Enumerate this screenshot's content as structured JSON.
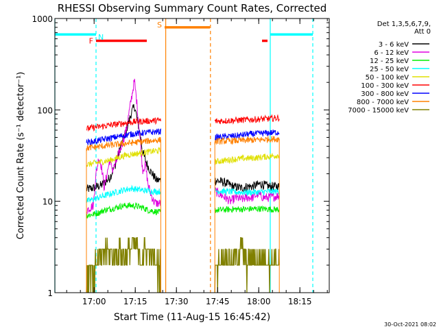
{
  "chart_data": {
    "type": "line",
    "title": "RHESSI Observing Summary Count Rates, Corrected",
    "xlabel": "Start Time (11-Aug-15 16:45:42)",
    "ylabel": "Corrected Count Rate (s⁻¹ detector⁻¹)",
    "x_unit": "minutes after 16:45:42",
    "xlim": [
      0,
      100
    ],
    "ylim": [
      1,
      1000
    ],
    "yscale": "log",
    "x_ticks": [
      {
        "x": 14.3,
        "label": "17:00"
      },
      {
        "x": 29.3,
        "label": "17:15"
      },
      {
        "x": 44.3,
        "label": "17:30"
      },
      {
        "x": 59.3,
        "label": "17:45"
      },
      {
        "x": 74.3,
        "label": "18:00"
      },
      {
        "x": 89.3,
        "label": "18:15"
      }
    ],
    "y_ticks": [
      {
        "y": 1,
        "label": "1"
      },
      {
        "y": 10,
        "label": "10"
      },
      {
        "y": 100,
        "label": "100"
      },
      {
        "y": 1000,
        "label": "1000"
      }
    ],
    "legend_header": [
      "Det 1,3,5,6,7,9,",
      "Att 0"
    ],
    "legend_placement": "right",
    "footer": "30-Oct-2021 08:02",
    "segments": [
      [
        11.5,
        38.6
      ],
      [
        58.3,
        81.8
      ]
    ],
    "series": [
      {
        "name": "3 - 6 keV",
        "color": "#000000",
        "points": [
          [
            11.5,
            13.5
          ],
          [
            14,
            14
          ],
          [
            17,
            15
          ],
          [
            20,
            18
          ],
          [
            22,
            25
          ],
          [
            24,
            40
          ],
          [
            26,
            60
          ],
          [
            27,
            75
          ],
          [
            28,
            95
          ],
          [
            29,
            110
          ],
          [
            30,
            80
          ],
          [
            31,
            55
          ],
          [
            32,
            35
          ],
          [
            33,
            28
          ],
          [
            34,
            24
          ],
          [
            35,
            21
          ],
          [
            36,
            19
          ],
          [
            37,
            17
          ],
          [
            38.6,
            17
          ],
          [
            58.3,
            17
          ],
          [
            62,
            16
          ],
          [
            65,
            14.5
          ],
          [
            68,
            14
          ],
          [
            70,
            14.5
          ],
          [
            72,
            14.5
          ],
          [
            75,
            15.5
          ],
          [
            78,
            14.5
          ],
          [
            81.8,
            14.5
          ]
        ]
      },
      {
        "name": "6 - 12 keV",
        "color": "#E000E0",
        "points": [
          [
            11.5,
            8
          ],
          [
            14,
            9
          ],
          [
            15,
            20
          ],
          [
            16,
            30
          ],
          [
            17,
            24
          ],
          [
            18,
            14
          ],
          [
            19,
            20
          ],
          [
            20,
            28
          ],
          [
            21,
            22
          ],
          [
            22,
            25
          ],
          [
            24,
            38
          ],
          [
            26,
            60
          ],
          [
            28,
            140
          ],
          [
            29,
            210
          ],
          [
            30,
            110
          ],
          [
            31,
            50
          ],
          [
            32,
            22
          ],
          [
            33,
            25
          ],
          [
            34,
            15
          ],
          [
            35,
            12
          ],
          [
            36,
            10
          ],
          [
            37,
            9.5
          ],
          [
            38.6,
            9.5
          ],
          [
            58.3,
            13
          ],
          [
            60,
            12
          ],
          [
            62,
            11
          ],
          [
            64,
            10
          ],
          [
            66,
            11
          ],
          [
            68,
            10.5
          ],
          [
            70,
            11
          ],
          [
            72,
            11
          ],
          [
            74,
            12
          ],
          [
            76,
            11
          ],
          [
            78,
            11
          ],
          [
            81.8,
            11.5
          ]
        ]
      },
      {
        "name": "12 - 25 keV",
        "color": "#00EE00",
        "points": [
          [
            11.5,
            7
          ],
          [
            14,
            7.2
          ],
          [
            16,
            7.5
          ],
          [
            18,
            8
          ],
          [
            20,
            8.2
          ],
          [
            22,
            8.5
          ],
          [
            24,
            8.8
          ],
          [
            26,
            9
          ],
          [
            28,
            9
          ],
          [
            30,
            8.8
          ],
          [
            32,
            8.5
          ],
          [
            34,
            8
          ],
          [
            36,
            7.8
          ],
          [
            38.6,
            7.5
          ],
          [
            58.3,
            8
          ],
          [
            62,
            8.1
          ],
          [
            66,
            8.2
          ],
          [
            70,
            8.2
          ],
          [
            74,
            8.3
          ],
          [
            78,
            8.2
          ],
          [
            81.8,
            8.1
          ]
        ]
      },
      {
        "name": "25 - 50 keV",
        "color": "#00FFFF",
        "points": [
          [
            11.5,
            10
          ],
          [
            14,
            10.5
          ],
          [
            16,
            11
          ],
          [
            18,
            11.5
          ],
          [
            20,
            12
          ],
          [
            22,
            12.5
          ],
          [
            24,
            13
          ],
          [
            26,
            13.5
          ],
          [
            28,
            13.8
          ],
          [
            30,
            13.5
          ],
          [
            32,
            13.2
          ],
          [
            34,
            13
          ],
          [
            36,
            12.8
          ],
          [
            38.6,
            12.8
          ],
          [
            58.3,
            13
          ],
          [
            62,
            12.8
          ],
          [
            66,
            12.6
          ],
          [
            70,
            12.5
          ],
          [
            74,
            12.6
          ],
          [
            78,
            12.8
          ],
          [
            81.8,
            12.8
          ]
        ]
      },
      {
        "name": "50 - 100 keV",
        "color": "#E0E000",
        "points": [
          [
            11.5,
            25
          ],
          [
            14,
            26
          ],
          [
            17,
            27
          ],
          [
            20,
            28
          ],
          [
            23,
            30
          ],
          [
            26,
            32
          ],
          [
            29,
            33
          ],
          [
            32,
            34
          ],
          [
            35,
            35
          ],
          [
            38.6,
            36
          ],
          [
            58.3,
            27
          ],
          [
            62,
            28
          ],
          [
            66,
            29
          ],
          [
            70,
            29.5
          ],
          [
            74,
            30
          ],
          [
            78,
            31
          ],
          [
            81.8,
            32
          ]
        ]
      },
      {
        "name": "100 - 300 keV",
        "color": "#FF0000",
        "points": [
          [
            11.5,
            62
          ],
          [
            14,
            64
          ],
          [
            17,
            66
          ],
          [
            20,
            68
          ],
          [
            23,
            70
          ],
          [
            26,
            72
          ],
          [
            29,
            74
          ],
          [
            32,
            75
          ],
          [
            35,
            76
          ],
          [
            38.6,
            77
          ],
          [
            58.3,
            75
          ],
          [
            62,
            76
          ],
          [
            66,
            77
          ],
          [
            70,
            78
          ],
          [
            74,
            79
          ],
          [
            78,
            80
          ],
          [
            81.8,
            82
          ]
        ]
      },
      {
        "name": "300 - 800 keV",
        "color": "#0000FF",
        "points": [
          [
            11.5,
            44
          ],
          [
            14,
            45
          ],
          [
            17,
            47
          ],
          [
            20,
            49
          ],
          [
            23,
            51
          ],
          [
            26,
            53
          ],
          [
            29,
            55
          ],
          [
            32,
            56
          ],
          [
            35,
            57
          ],
          [
            38.6,
            58
          ],
          [
            58.3,
            50
          ],
          [
            62,
            51
          ],
          [
            66,
            52
          ],
          [
            70,
            54
          ],
          [
            74,
            55
          ],
          [
            78,
            56
          ],
          [
            81.8,
            57
          ]
        ]
      },
      {
        "name": "800 - 7000 keV",
        "color": "#FF8000",
        "points": [
          [
            11.5,
            38
          ],
          [
            14,
            39
          ],
          [
            17,
            40
          ],
          [
            20,
            41
          ],
          [
            23,
            42
          ],
          [
            26,
            43
          ],
          [
            29,
            44
          ],
          [
            32,
            45
          ],
          [
            35,
            46
          ],
          [
            38.6,
            47
          ],
          [
            58.3,
            45
          ],
          [
            62,
            45.5
          ],
          [
            66,
            46
          ],
          [
            70,
            46.5
          ],
          [
            74,
            47
          ],
          [
            78,
            48
          ],
          [
            81.8,
            48
          ]
        ]
      },
      {
        "name": "7000 - 15000 keV",
        "color": "#808000",
        "points": [
          [
            11.5,
            1.5
          ],
          [
            13,
            2
          ],
          [
            14,
            1.5
          ],
          [
            15,
            2
          ],
          [
            17,
            2.5
          ],
          [
            19,
            3
          ],
          [
            21,
            2.5
          ],
          [
            23,
            3
          ],
          [
            25,
            2.5
          ],
          [
            27,
            3
          ],
          [
            29,
            3.5
          ],
          [
            31,
            2.5
          ],
          [
            33,
            3
          ],
          [
            35,
            2.5
          ],
          [
            37,
            2
          ],
          [
            38.6,
            2
          ],
          [
            58.3,
            1.8
          ],
          [
            60,
            2
          ],
          [
            62,
            2.5
          ],
          [
            64,
            2
          ],
          [
            66,
            2.5
          ],
          [
            68,
            3
          ],
          [
            70,
            2
          ],
          [
            72,
            2.5
          ],
          [
            74,
            2
          ],
          [
            76,
            2.5
          ],
          [
            78,
            2
          ],
          [
            80,
            2.5
          ],
          [
            81.8,
            2
          ]
        ]
      }
    ],
    "annotations": [
      {
        "label": "F",
        "color": "#FF0000",
        "bar": [
          15,
          33.5
        ],
        "y": 570
      },
      {
        "label": "S",
        "color": "#FF8000",
        "bar": [
          40,
          56.5
        ],
        "y": 800
      },
      {
        "label": "N",
        "color": "#00FFFF",
        "bar": [
          0,
          15
        ],
        "y": 670
      },
      {
        "label": "",
        "color": "#FF0000",
        "bar": [
          75.5,
          77.5
        ],
        "y": 570
      },
      {
        "label": "",
        "color": "#00FFFF",
        "bar": [
          78.5,
          94
        ],
        "y": 670
      }
    ],
    "vlines": [
      {
        "x": 0,
        "color": "#00FFFF",
        "style": "solid"
      },
      {
        "x": 15,
        "color": "#00FFFF",
        "style": "dashed"
      },
      {
        "x": 40.4,
        "color": "#FF8000",
        "style": "solid"
      },
      {
        "x": 56.7,
        "color": "#FF8000",
        "style": "dashed"
      },
      {
        "x": 78.5,
        "color": "#00FFFF",
        "style": "solid"
      },
      {
        "x": 94,
        "color": "#00FFFF",
        "style": "dashed"
      }
    ]
  }
}
